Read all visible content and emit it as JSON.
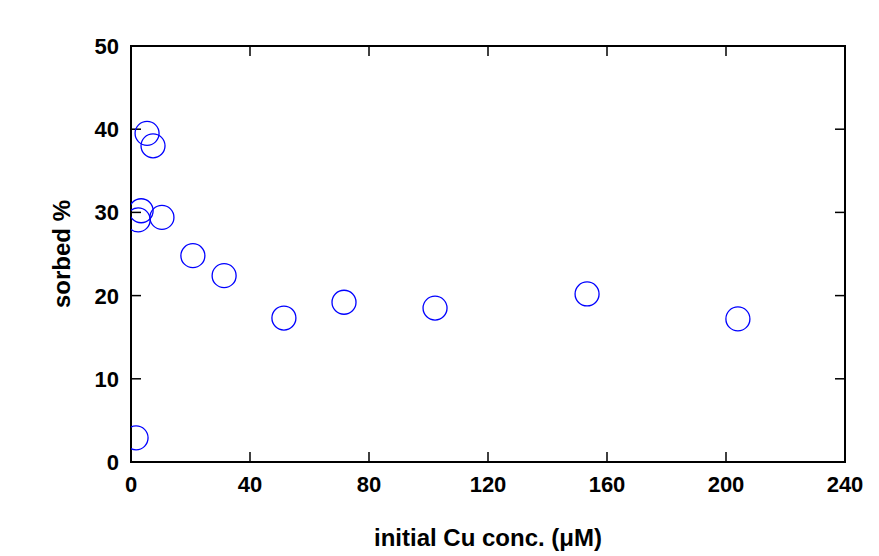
{
  "chart_data": {
    "type": "scatter",
    "x_label": "initial Cu conc. (μM)",
    "y_label": "sorbed %",
    "x": [
      1.7,
      2.4,
      3.4,
      5.4,
      7.4,
      10.4,
      20.8,
      31.3,
      51.4,
      71.6,
      102.2,
      153.3,
      204.0
    ],
    "values": [
      2.9,
      29.1,
      30.2,
      39.5,
      38.0,
      29.4,
      24.8,
      22.4,
      17.3,
      19.2,
      18.5,
      20.2,
      17.2
    ],
    "color": "#0000ff",
    "marker": "open-circle",
    "xlim": [
      0,
      240
    ],
    "xticks": [
      0,
      40,
      80,
      120,
      160,
      200,
      240
    ],
    "ylim": [
      0,
      50
    ],
    "yticks": [
      0,
      10,
      20,
      30,
      40,
      50
    ],
    "grid": false
  }
}
